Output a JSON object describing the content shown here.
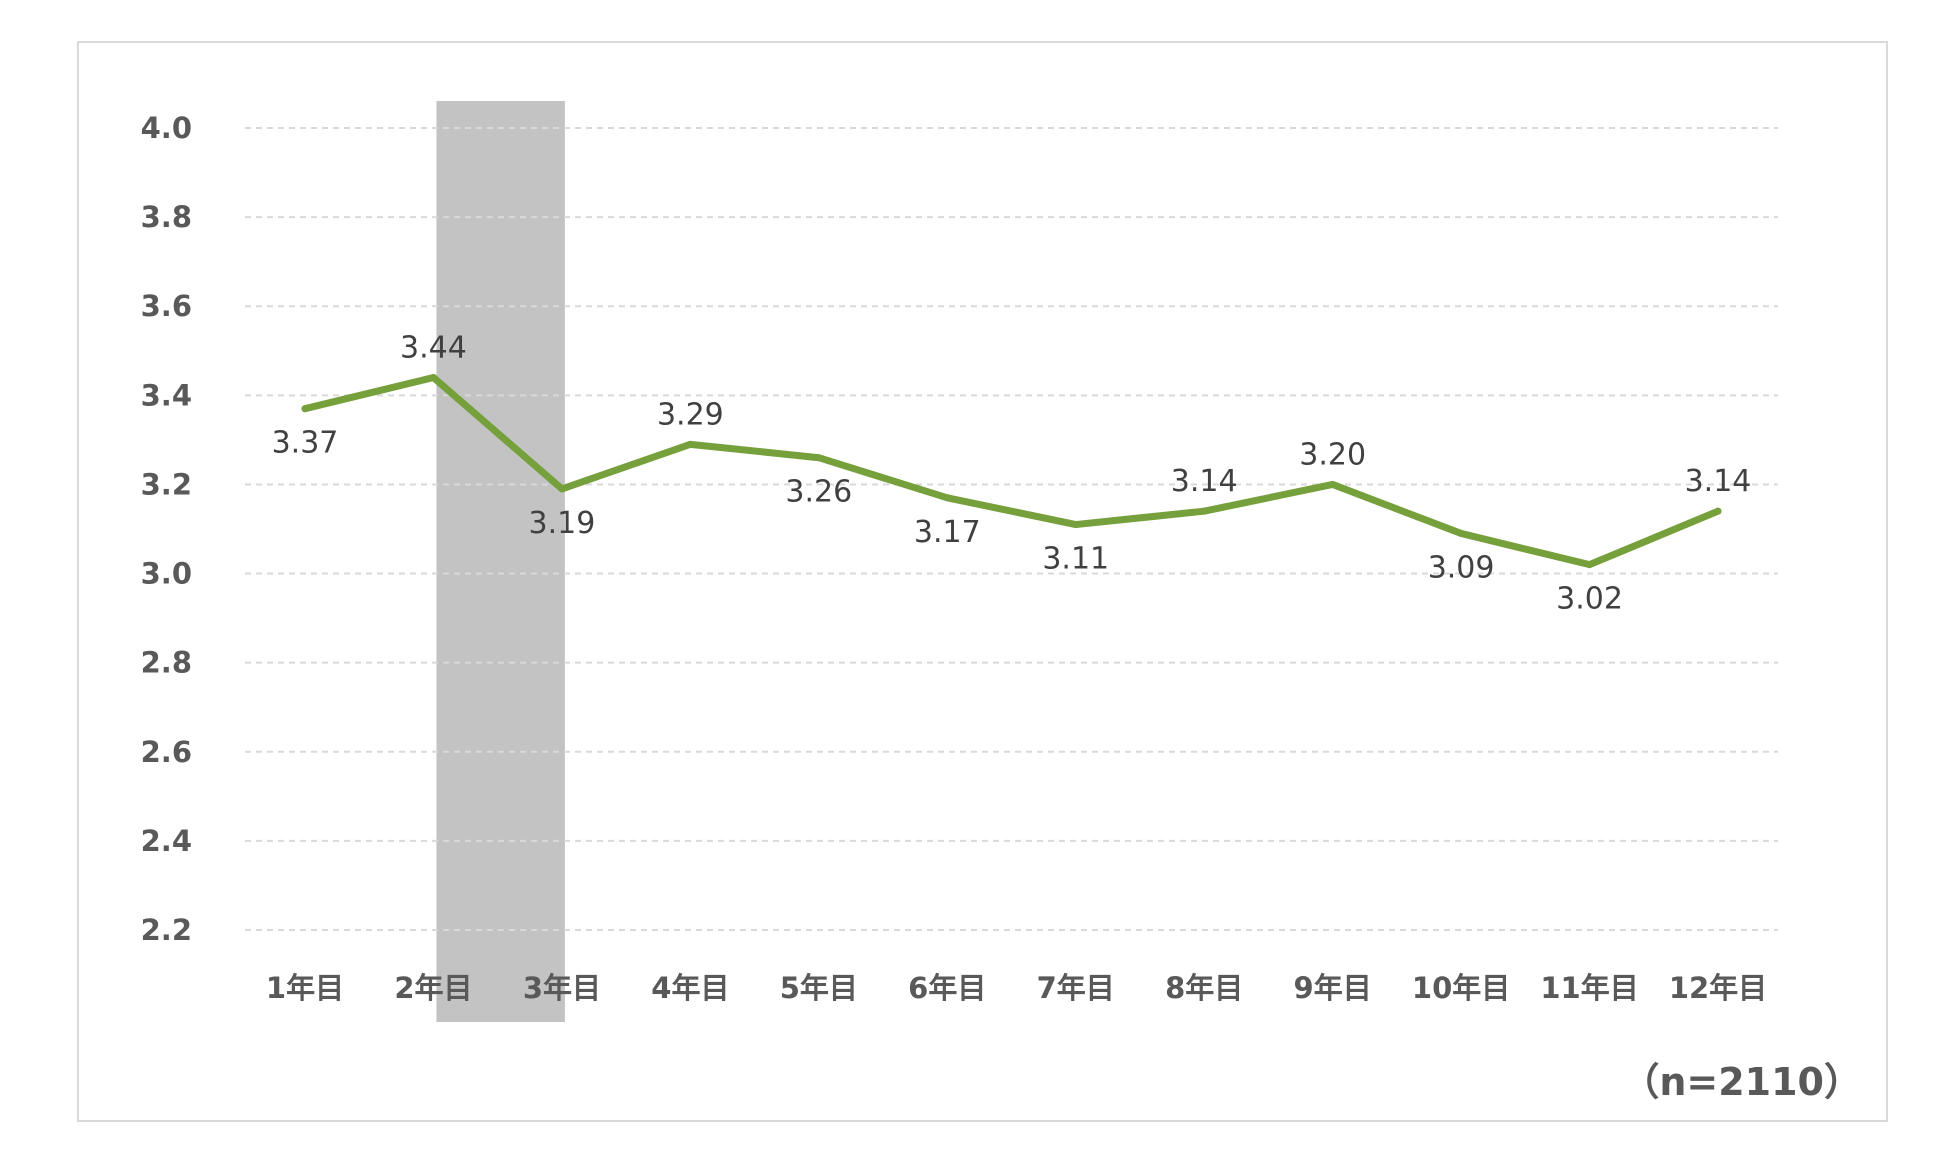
{
  "chart_data": {
    "type": "line",
    "categories": [
      "1年目",
      "2年目",
      "3年目",
      "4年目",
      "5年目",
      "6年目",
      "7年目",
      "8年目",
      "9年目",
      "10年目",
      "11年目",
      "12年目"
    ],
    "series": [
      {
        "values": [
          3.37,
          3.44,
          3.19,
          3.29,
          3.26,
          3.17,
          3.11,
          3.14,
          3.2,
          3.09,
          3.02,
          3.14
        ],
        "data_labels": [
          "3.37",
          "3.44",
          "3.19",
          "3.29",
          "3.26",
          "3.17",
          "3.11",
          "3.14",
          "3.20",
          "3.09",
          "3.02",
          "3.14"
        ],
        "color": "#76a03b"
      }
    ],
    "yticks": [
      "2.2",
      "2.4",
      "2.6",
      "2.8",
      "3.0",
      "3.2",
      "3.4",
      "3.6",
      "3.8",
      "4.0"
    ],
    "ylim": [
      2.2,
      4.0
    ],
    "highlight": {
      "from_category": "2年目",
      "to_category": "3年目",
      "color": "#c3c3c3"
    },
    "grid": true,
    "grid_color": "#d9d9d9",
    "legend": "none",
    "title": "",
    "xlabel": "",
    "ylabel": "",
    "note": "（n=2110）"
  }
}
